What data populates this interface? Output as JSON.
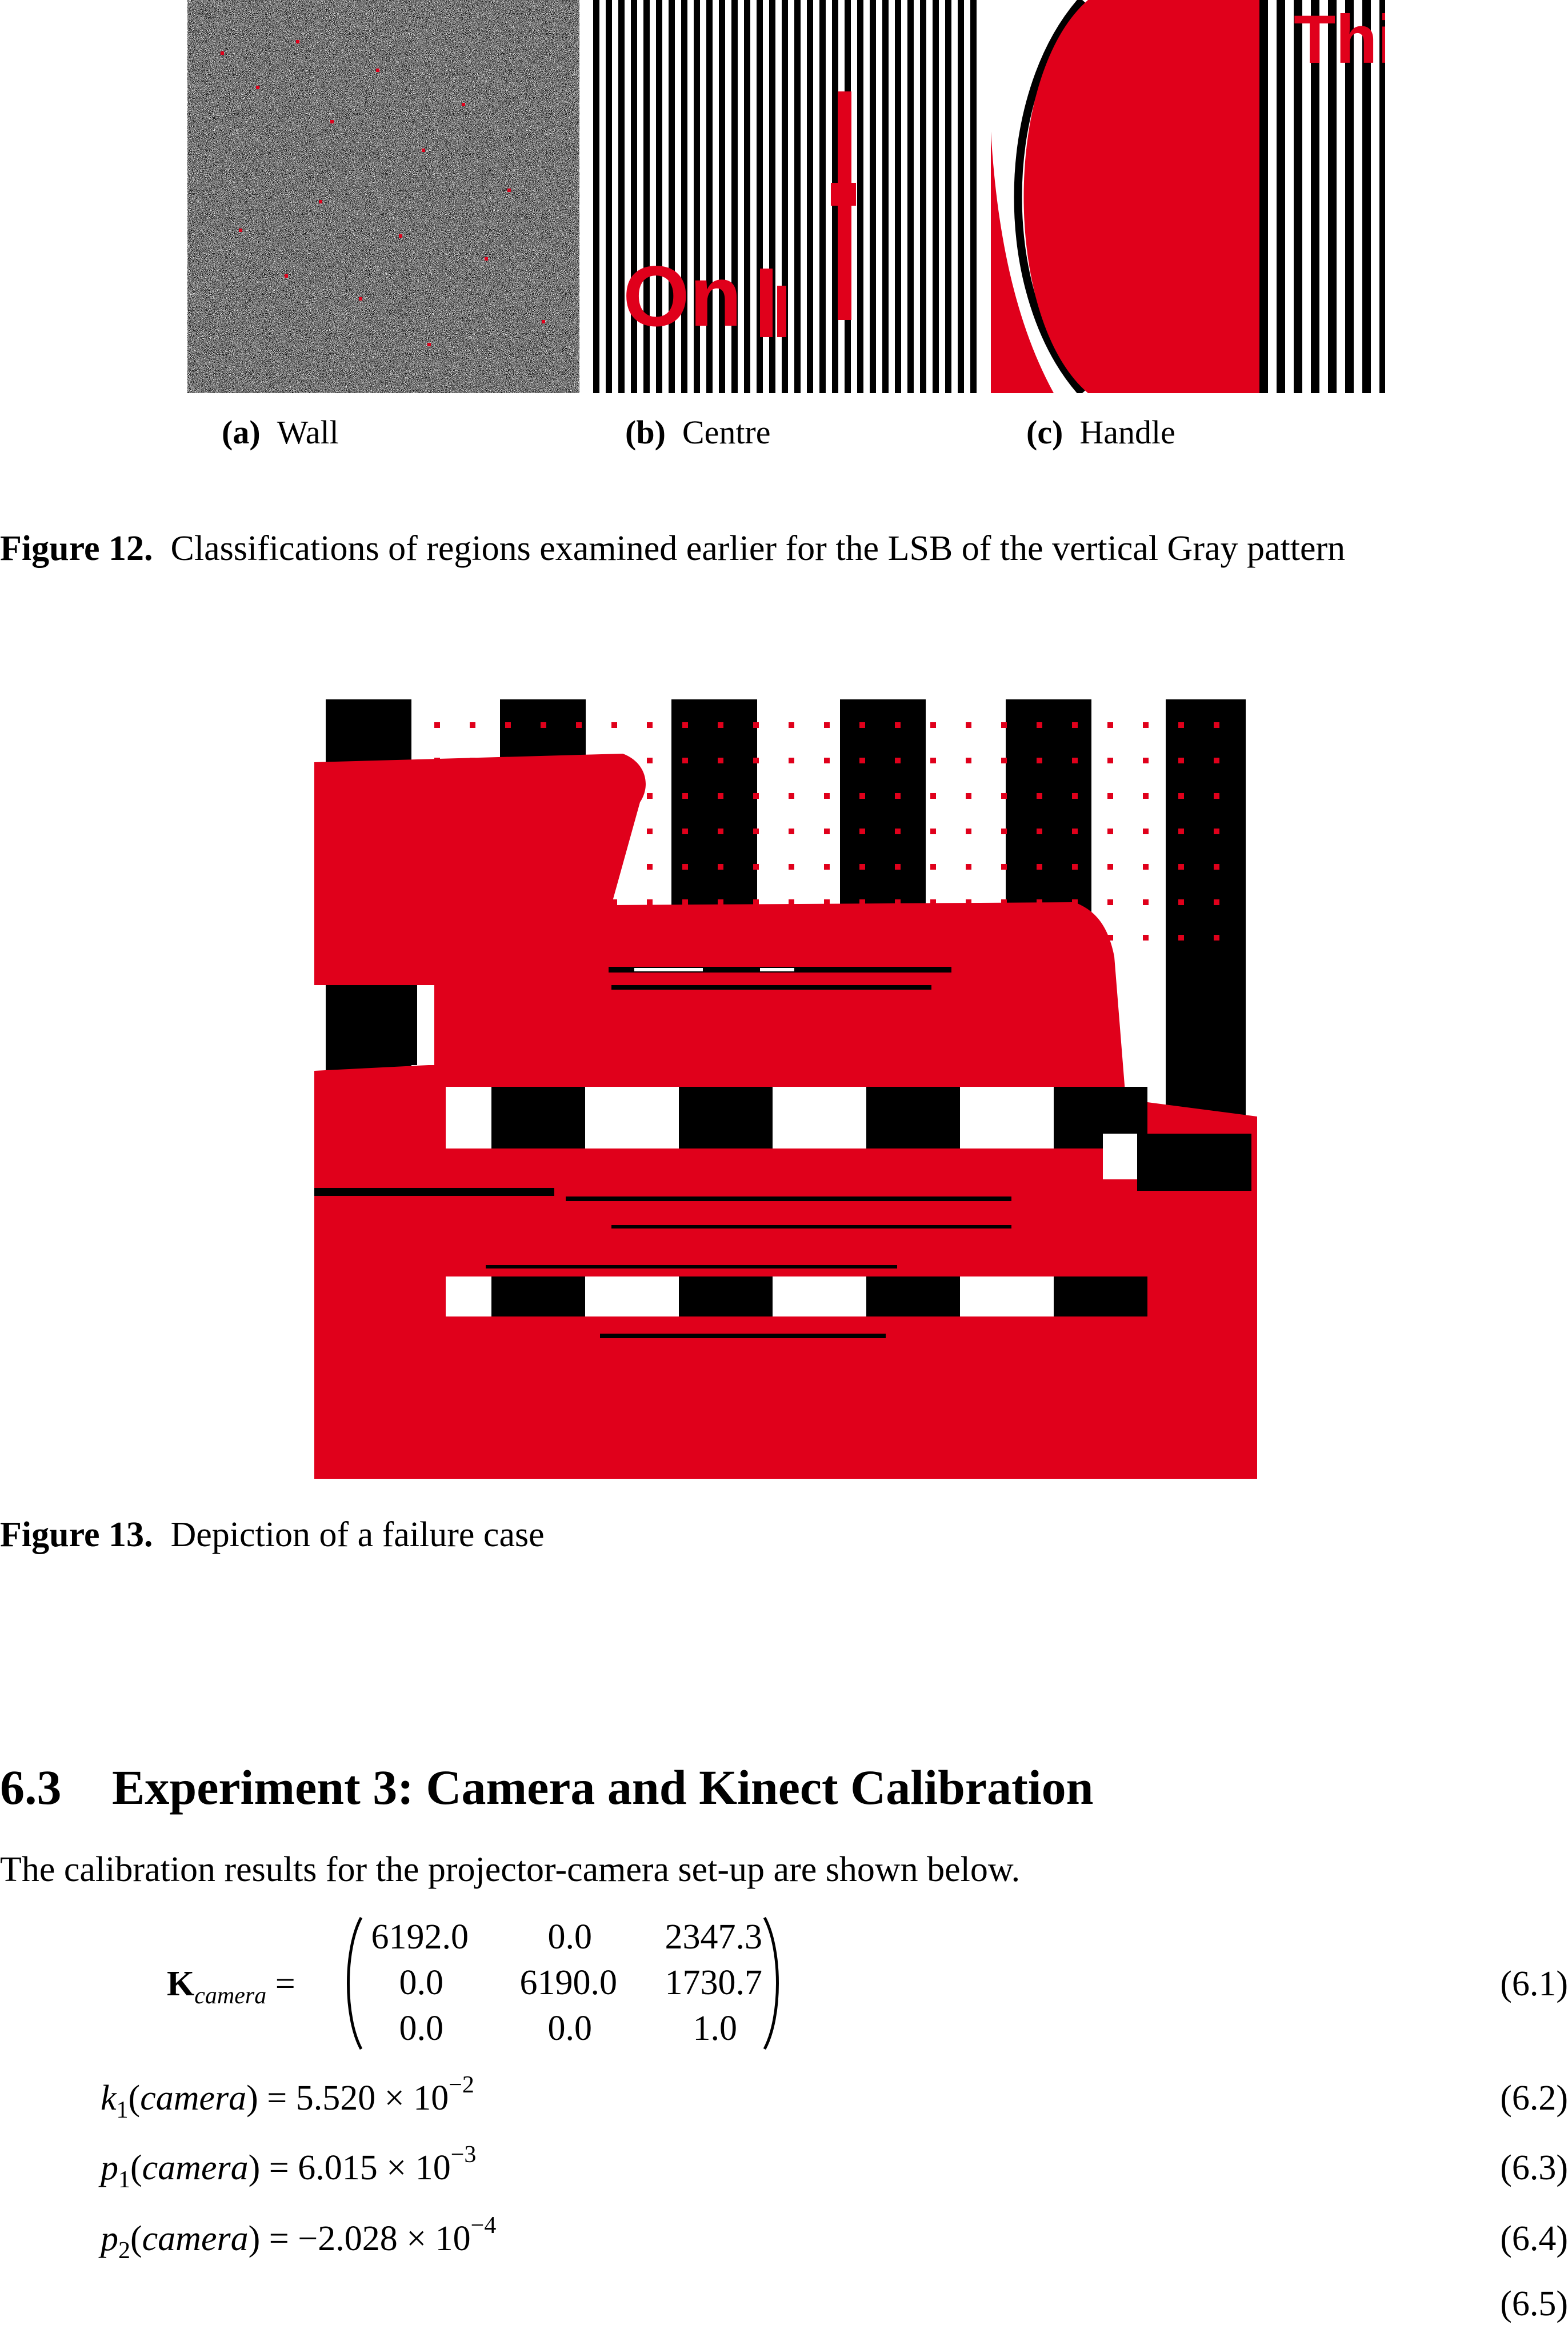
{
  "figure12": {
    "subfigures": [
      {
        "label": "(a)",
        "name": "Wall"
      },
      {
        "label": "(b)",
        "name": "Centre"
      },
      {
        "label": "(c)",
        "name": "Handle"
      }
    ],
    "panel_text": {
      "centre_red": "On",
      "handle_red": "Thi"
    },
    "caption_label": "Figure 12.",
    "caption_text": "Classifications of regions examined earlier for the LSB of the vertical Gray pattern"
  },
  "figure13": {
    "caption_label": "Figure 13.",
    "caption_text": "Depiction of a failure case"
  },
  "section": {
    "number": "6.3",
    "title": "Experiment 3: Camera and Kinect Calibration",
    "intro": "The calibration results for the projector-camera set-up are shown below."
  },
  "equations": {
    "k_symbol": "K",
    "k_subscript": "camera",
    "matrix_rows": [
      [
        "6192.0",
        "0.0",
        "2347.3"
      ],
      [
        "0.0",
        "6190.0",
        "1730.7"
      ],
      [
        "0.0",
        "0.0",
        "1.0"
      ]
    ],
    "k1": {
      "sym": "k",
      "sub": "1",
      "arg": "camera",
      "value": "5.520",
      "exp": "−2"
    },
    "p1": {
      "sym": "p",
      "sub": "1",
      "arg": "camera",
      "value": "6.015",
      "exp": "−3"
    },
    "p2": {
      "sym": "p",
      "sub": "2",
      "arg": "camera",
      "value": "−2.028",
      "exp": "−4"
    },
    "numbers": [
      "(6.1)",
      "(6.2)",
      "(6.3)",
      "(6.4)",
      "(6.5)"
    ]
  },
  "colors": {
    "classification_red": "#e0001b",
    "black": "#000000",
    "white": "#ffffff"
  }
}
